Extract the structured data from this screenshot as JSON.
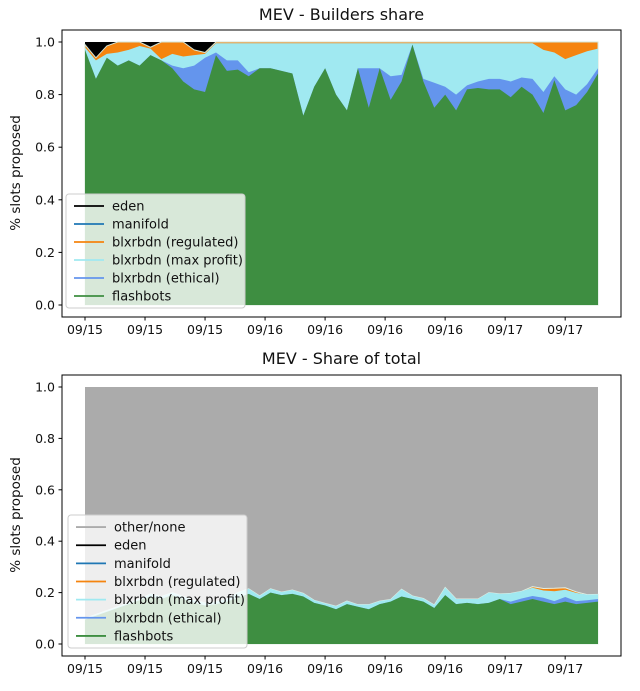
{
  "figure": {
    "background": "#ffffff"
  },
  "palette": {
    "eden": "#000000",
    "manifold": "#1f77b4",
    "blxrbdn_regulated": "#f5840f",
    "blxrbdn_max_profit": "#a0e9f1",
    "blxrbdn_ethical": "#6495ed",
    "flashbots": "#3e8e41",
    "other_none": "#ababab",
    "stack_edge": "#d2e4d6",
    "legend_bg": "rgba(255,255,255,0.8)",
    "legend_border": "#cccccc",
    "axis": "#000000"
  },
  "chart_data": [
    {
      "type": "area",
      "stacked": true,
      "title": "MEV - Builders share",
      "ylabel": "% slots proposed",
      "xlabel": "",
      "ylim": [
        0,
        1
      ],
      "grid": false,
      "legend_position": "lower left",
      "yticks": [
        {
          "v": 0,
          "label": "0.0"
        },
        {
          "v": 0.2,
          "label": "0.2"
        },
        {
          "v": 0.4,
          "label": "0.4"
        },
        {
          "v": 0.6,
          "label": "0.6"
        },
        {
          "v": 0.8,
          "label": "0.8"
        },
        {
          "v": 1,
          "label": "1.0"
        }
      ],
      "xticks": [
        {
          "t": 0,
          "label": "09/15"
        },
        {
          "t": 0.117,
          "label": "09/15"
        },
        {
          "t": 0.234,
          "label": "09/15"
        },
        {
          "t": 0.351,
          "label": "09/16"
        },
        {
          "t": 0.468,
          "label": "09/16"
        },
        {
          "t": 0.585,
          "label": "09/16"
        },
        {
          "t": 0.702,
          "label": "09/16"
        },
        {
          "t": 0.819,
          "label": "09/17"
        },
        {
          "t": 0.936,
          "label": "09/17"
        }
      ],
      "legend": [
        {
          "label": "eden",
          "color": "#000000"
        },
        {
          "label": "manifold",
          "color": "#1f77b4"
        },
        {
          "label": "blxrbdn (regulated)",
          "color": "#f5840f"
        },
        {
          "label": "blxrbdn (max profit)",
          "color": "#a0e9f1"
        },
        {
          "label": "blxrbdn (ethical)",
          "color": "#6495ed"
        },
        {
          "label": "flashbots",
          "color": "#3e8e41"
        }
      ],
      "layers_bottom_to_top": [
        {
          "name": "flashbots",
          "color": "#3e8e41",
          "cum": [
            0.97,
            0.86,
            0.94,
            0.91,
            0.93,
            0.91,
            0.95,
            0.93,
            0.9,
            0.85,
            0.82,
            0.81,
            0.95,
            0.89,
            0.895,
            0.87,
            0.9,
            0.9,
            0.89,
            0.88,
            0.72,
            0.83,
            0.9,
            0.8,
            0.74,
            0.9,
            0.75,
            0.9,
            0.78,
            0.85,
            0.99,
            0.85,
            0.75,
            0.8,
            0.74,
            0.82,
            0.825,
            0.82,
            0.82,
            0.79,
            0.83,
            0.8,
            0.73,
            0.855,
            0.74,
            0.76,
            0.81,
            0.88
          ]
        },
        {
          "name": "blxrbdn (ethical)",
          "color": "#6495ed",
          "cum": [
            0.97,
            0.86,
            0.94,
            0.91,
            0.93,
            0.91,
            0.95,
            0.93,
            0.91,
            0.9,
            0.91,
            0.94,
            0.96,
            0.93,
            0.93,
            0.885,
            0.9,
            0.9,
            0.89,
            0.88,
            0.72,
            0.83,
            0.9,
            0.8,
            0.74,
            0.9,
            0.9,
            0.9,
            0.87,
            0.875,
            0.99,
            0.86,
            0.845,
            0.83,
            0.8,
            0.835,
            0.85,
            0.86,
            0.86,
            0.85,
            0.865,
            0.86,
            0.81,
            0.87,
            0.82,
            0.8,
            0.84,
            0.9
          ]
        },
        {
          "name": "blxrbdn (max profit)",
          "color": "#a0e9f1",
          "cum": [
            0.98,
            0.93,
            0.955,
            0.96,
            0.97,
            0.985,
            0.975,
            0.935,
            0.955,
            0.945,
            0.95,
            0.955,
            0.995,
            0.995,
            0.995,
            0.995,
            0.995,
            0.995,
            0.995,
            0.995,
            0.995,
            0.995,
            0.995,
            0.995,
            0.995,
            0.995,
            0.995,
            0.995,
            0.995,
            0.995,
            0.995,
            0.995,
            0.995,
            0.995,
            0.995,
            0.995,
            0.995,
            0.995,
            0.995,
            0.995,
            0.995,
            0.995,
            0.97,
            0.96,
            0.935,
            0.95,
            0.965,
            0.975
          ]
        },
        {
          "name": "blxrbdn (regulated)",
          "color": "#f5840f",
          "edge": "#d2e4d6",
          "cum": [
            0.99,
            0.94,
            0.985,
            1,
            1,
            1,
            0.98,
            1,
            1,
            1,
            0.97,
            0.96,
            1,
            1,
            1,
            1,
            1,
            1,
            1,
            1,
            1,
            1,
            1,
            1,
            1,
            1,
            1,
            1,
            1,
            1,
            1,
            1,
            1,
            1,
            1,
            1,
            1,
            1,
            1,
            1,
            1,
            1,
            1,
            1,
            1,
            1,
            1,
            1
          ]
        },
        {
          "name": "manifold",
          "color": "#1f77b4",
          "share": 0
        },
        {
          "name": "eden",
          "color": "#000000",
          "cum": 1
        }
      ]
    },
    {
      "type": "area",
      "stacked": true,
      "title": "MEV - Share of total",
      "ylabel": "% slots proposed",
      "xlabel": "",
      "ylim": [
        0,
        1
      ],
      "grid": false,
      "legend_position": "lower left",
      "yticks": [
        {
          "v": 0,
          "label": "0.0"
        },
        {
          "v": 0.2,
          "label": "0.2"
        },
        {
          "v": 0.4,
          "label": "0.4"
        },
        {
          "v": 0.6,
          "label": "0.6"
        },
        {
          "v": 0.8,
          "label": "0.8"
        },
        {
          "v": 1,
          "label": "1.0"
        }
      ],
      "xticks": [
        {
          "t": 0,
          "label": "09/15"
        },
        {
          "t": 0.117,
          "label": "09/15"
        },
        {
          "t": 0.234,
          "label": "09/15"
        },
        {
          "t": 0.351,
          "label": "09/16"
        },
        {
          "t": 0.468,
          "label": "09/16"
        },
        {
          "t": 0.585,
          "label": "09/16"
        },
        {
          "t": 0.702,
          "label": "09/16"
        },
        {
          "t": 0.819,
          "label": "09/17"
        },
        {
          "t": 0.936,
          "label": "09/17"
        }
      ],
      "legend": [
        {
          "label": "other/none",
          "color": "#ababab"
        },
        {
          "label": "eden",
          "color": "#000000"
        },
        {
          "label": "manifold",
          "color": "#1f77b4"
        },
        {
          "label": "blxrbdn (regulated)",
          "color": "#f5840f"
        },
        {
          "label": "blxrbdn (max profit)",
          "color": "#a0e9f1"
        },
        {
          "label": "blxrbdn (ethical)",
          "color": "#6495ed"
        },
        {
          "label": "flashbots",
          "color": "#3e8e41"
        }
      ],
      "layers_bottom_to_top": [
        {
          "name": "flashbots",
          "color": "#3e8e41",
          "cum": [
            0.095,
            0.11,
            0.125,
            0.14,
            0.155,
            0.17,
            0.185,
            0.175,
            0.19,
            0.175,
            0.16,
            0.15,
            0.155,
            0.165,
            0.18,
            0.195,
            0.175,
            0.2,
            0.19,
            0.195,
            0.185,
            0.16,
            0.15,
            0.135,
            0.155,
            0.145,
            0.135,
            0.155,
            0.165,
            0.185,
            0.175,
            0.165,
            0.14,
            0.19,
            0.155,
            0.16,
            0.155,
            0.16,
            0.175,
            0.155,
            0.165,
            0.175,
            0.165,
            0.155,
            0.165,
            0.155,
            0.16,
            0.165
          ]
        },
        {
          "name": "blxrbdn (ethical)",
          "color": "#6495ed",
          "cum": [
            0.095,
            0.11,
            0.125,
            0.14,
            0.155,
            0.17,
            0.185,
            0.175,
            0.19,
            0.175,
            0.16,
            0.15,
            0.155,
            0.165,
            0.18,
            0.195,
            0.175,
            0.2,
            0.19,
            0.195,
            0.185,
            0.16,
            0.15,
            0.135,
            0.155,
            0.145,
            0.135,
            0.155,
            0.165,
            0.185,
            0.175,
            0.165,
            0.14,
            0.19,
            0.155,
            0.16,
            0.155,
            0.16,
            0.175,
            0.165,
            0.177,
            0.187,
            0.18,
            0.167,
            0.183,
            0.167,
            0.17,
            0.175
          ]
        },
        {
          "name": "blxrbdn (max profit)",
          "color": "#a0e9f1",
          "cum": [
            0.1,
            0.115,
            0.13,
            0.145,
            0.16,
            0.175,
            0.195,
            0.185,
            0.2,
            0.185,
            0.17,
            0.16,
            0.165,
            0.175,
            0.2,
            0.215,
            0.187,
            0.215,
            0.202,
            0.21,
            0.197,
            0.17,
            0.158,
            0.147,
            0.167,
            0.153,
            0.153,
            0.167,
            0.173,
            0.213,
            0.187,
            0.177,
            0.152,
            0.22,
            0.175,
            0.175,
            0.175,
            0.2,
            0.195,
            0.197,
            0.205,
            0.219,
            0.208,
            0.205,
            0.211,
            0.199,
            0.192,
            0.193
          ]
        },
        {
          "name": "blxrbdn (regulated)",
          "color": "#f5840f",
          "edge": "#e2efe4",
          "cum": [
            0.1,
            0.115,
            0.13,
            0.145,
            0.16,
            0.175,
            0.195,
            0.185,
            0.2,
            0.185,
            0.17,
            0.16,
            0.165,
            0.175,
            0.2,
            0.215,
            0.187,
            0.215,
            0.202,
            0.21,
            0.197,
            0.17,
            0.158,
            0.147,
            0.167,
            0.153,
            0.153,
            0.167,
            0.173,
            0.213,
            0.187,
            0.177,
            0.152,
            0.22,
            0.175,
            0.175,
            0.175,
            0.2,
            0.195,
            0.197,
            0.205,
            0.223,
            0.216,
            0.217,
            0.219,
            0.203,
            0.192,
            0.193
          ]
        },
        {
          "name": "manifold",
          "color": "#1f77b4",
          "share": 0
        },
        {
          "name": "eden",
          "color": "#000000",
          "share": 0
        },
        {
          "name": "other/none",
          "color": "#ababab",
          "cum": 1
        }
      ]
    }
  ]
}
